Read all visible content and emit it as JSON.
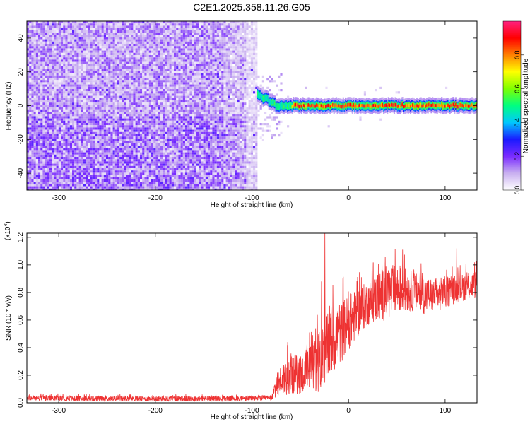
{
  "title": "C2E1.2025.358.11.26.G05",
  "chart_data": [
    {
      "type": "heatmap",
      "xlabel": "Height of straight line (km)",
      "ylabel": "Frequency (Hz)",
      "xlim": [
        -333,
        133
      ],
      "ylim": [
        -50,
        50
      ],
      "xticks": [
        -300,
        -200,
        -100,
        0,
        100
      ],
      "xtick_labels": [
        "-300",
        "-200",
        "-100",
        "0",
        "100"
      ],
      "yticks": [
        -40,
        -20,
        0,
        20,
        40
      ],
      "ytick_labels": [
        "-40",
        "-20",
        "0",
        "20",
        "40"
      ],
      "noise_region_x": [
        -333,
        -95
      ],
      "signal_line": {
        "frequency_hz": 0,
        "x_range": [
          -95,
          133
        ],
        "onset_frequency_hz": 7
      },
      "colorbar": {
        "label": "Normalized spectral amplitude",
        "range": [
          0.0,
          1.0
        ],
        "ticks": [
          0.0,
          0.2,
          0.4,
          0.6,
          0.8
        ],
        "tick_labels": [
          "0.0",
          "0.2",
          "0.4",
          "0.6",
          "0.8"
        ],
        "colors": [
          "#ffffff",
          "#c9b0f0",
          "#7a2bff",
          "#1a1aff",
          "#00c8ff",
          "#00ff80",
          "#7fff00",
          "#ffff00",
          "#ff8000",
          "#ff0000",
          "#ff2080"
        ]
      }
    },
    {
      "type": "line",
      "xlabel": "Height of straight line (km)",
      "ylabel": "SNR (10 * v/v)",
      "y_multiplier": "(x10",
      "y_multiplier_exp": "4",
      "y_multiplier_close": ")",
      "xlim": [
        -333,
        133
      ],
      "ylim": [
        0,
        1.23
      ],
      "xticks": [
        -300,
        -200,
        -100,
        0,
        100
      ],
      "xtick_labels": [
        "-300",
        "-200",
        "-100",
        "0",
        "100"
      ],
      "yticks": [
        0.0,
        0.2,
        0.4,
        0.6,
        0.8,
        1.0,
        1.2
      ],
      "ytick_labels": [
        "0.0",
        "0.2",
        "0.4",
        "0.6",
        "0.8",
        "1.0",
        "1.2"
      ],
      "series_color": "#ee3333",
      "series": [
        {
          "name": "SNR",
          "x": [
            -333,
            -250,
            -150,
            -80,
            -72,
            -60,
            -50,
            -40,
            -30,
            -20,
            -10,
            0,
            10,
            20,
            30,
            40,
            50,
            60,
            70,
            80,
            90,
            100,
            110,
            120,
            133
          ],
          "y": [
            0.035,
            0.03,
            0.03,
            0.035,
            0.15,
            0.22,
            0.2,
            0.25,
            0.3,
            0.42,
            0.5,
            0.58,
            0.66,
            0.72,
            0.76,
            0.8,
            0.82,
            0.82,
            0.8,
            0.78,
            0.78,
            0.8,
            0.82,
            0.84,
            0.86
          ],
          "spread": [
            0.02,
            0.02,
            0.02,
            0.02,
            0.1,
            0.16,
            0.14,
            0.18,
            0.22,
            0.24,
            0.24,
            0.2,
            0.18,
            0.16,
            0.18,
            0.2,
            0.18,
            0.16,
            0.14,
            0.14,
            0.12,
            0.12,
            0.1,
            0.1,
            0.1
          ],
          "peaks": [
            {
              "x": -24.5,
              "y": 1.24
            },
            {
              "x": -28,
              "y": 0.88
            },
            {
              "x": -63,
              "y": 0.44
            },
            {
              "x": 38,
              "y": 1.06
            },
            {
              "x": 56,
              "y": 1.11
            },
            {
              "x": 112,
              "y": 1.12
            }
          ]
        }
      ]
    }
  ]
}
